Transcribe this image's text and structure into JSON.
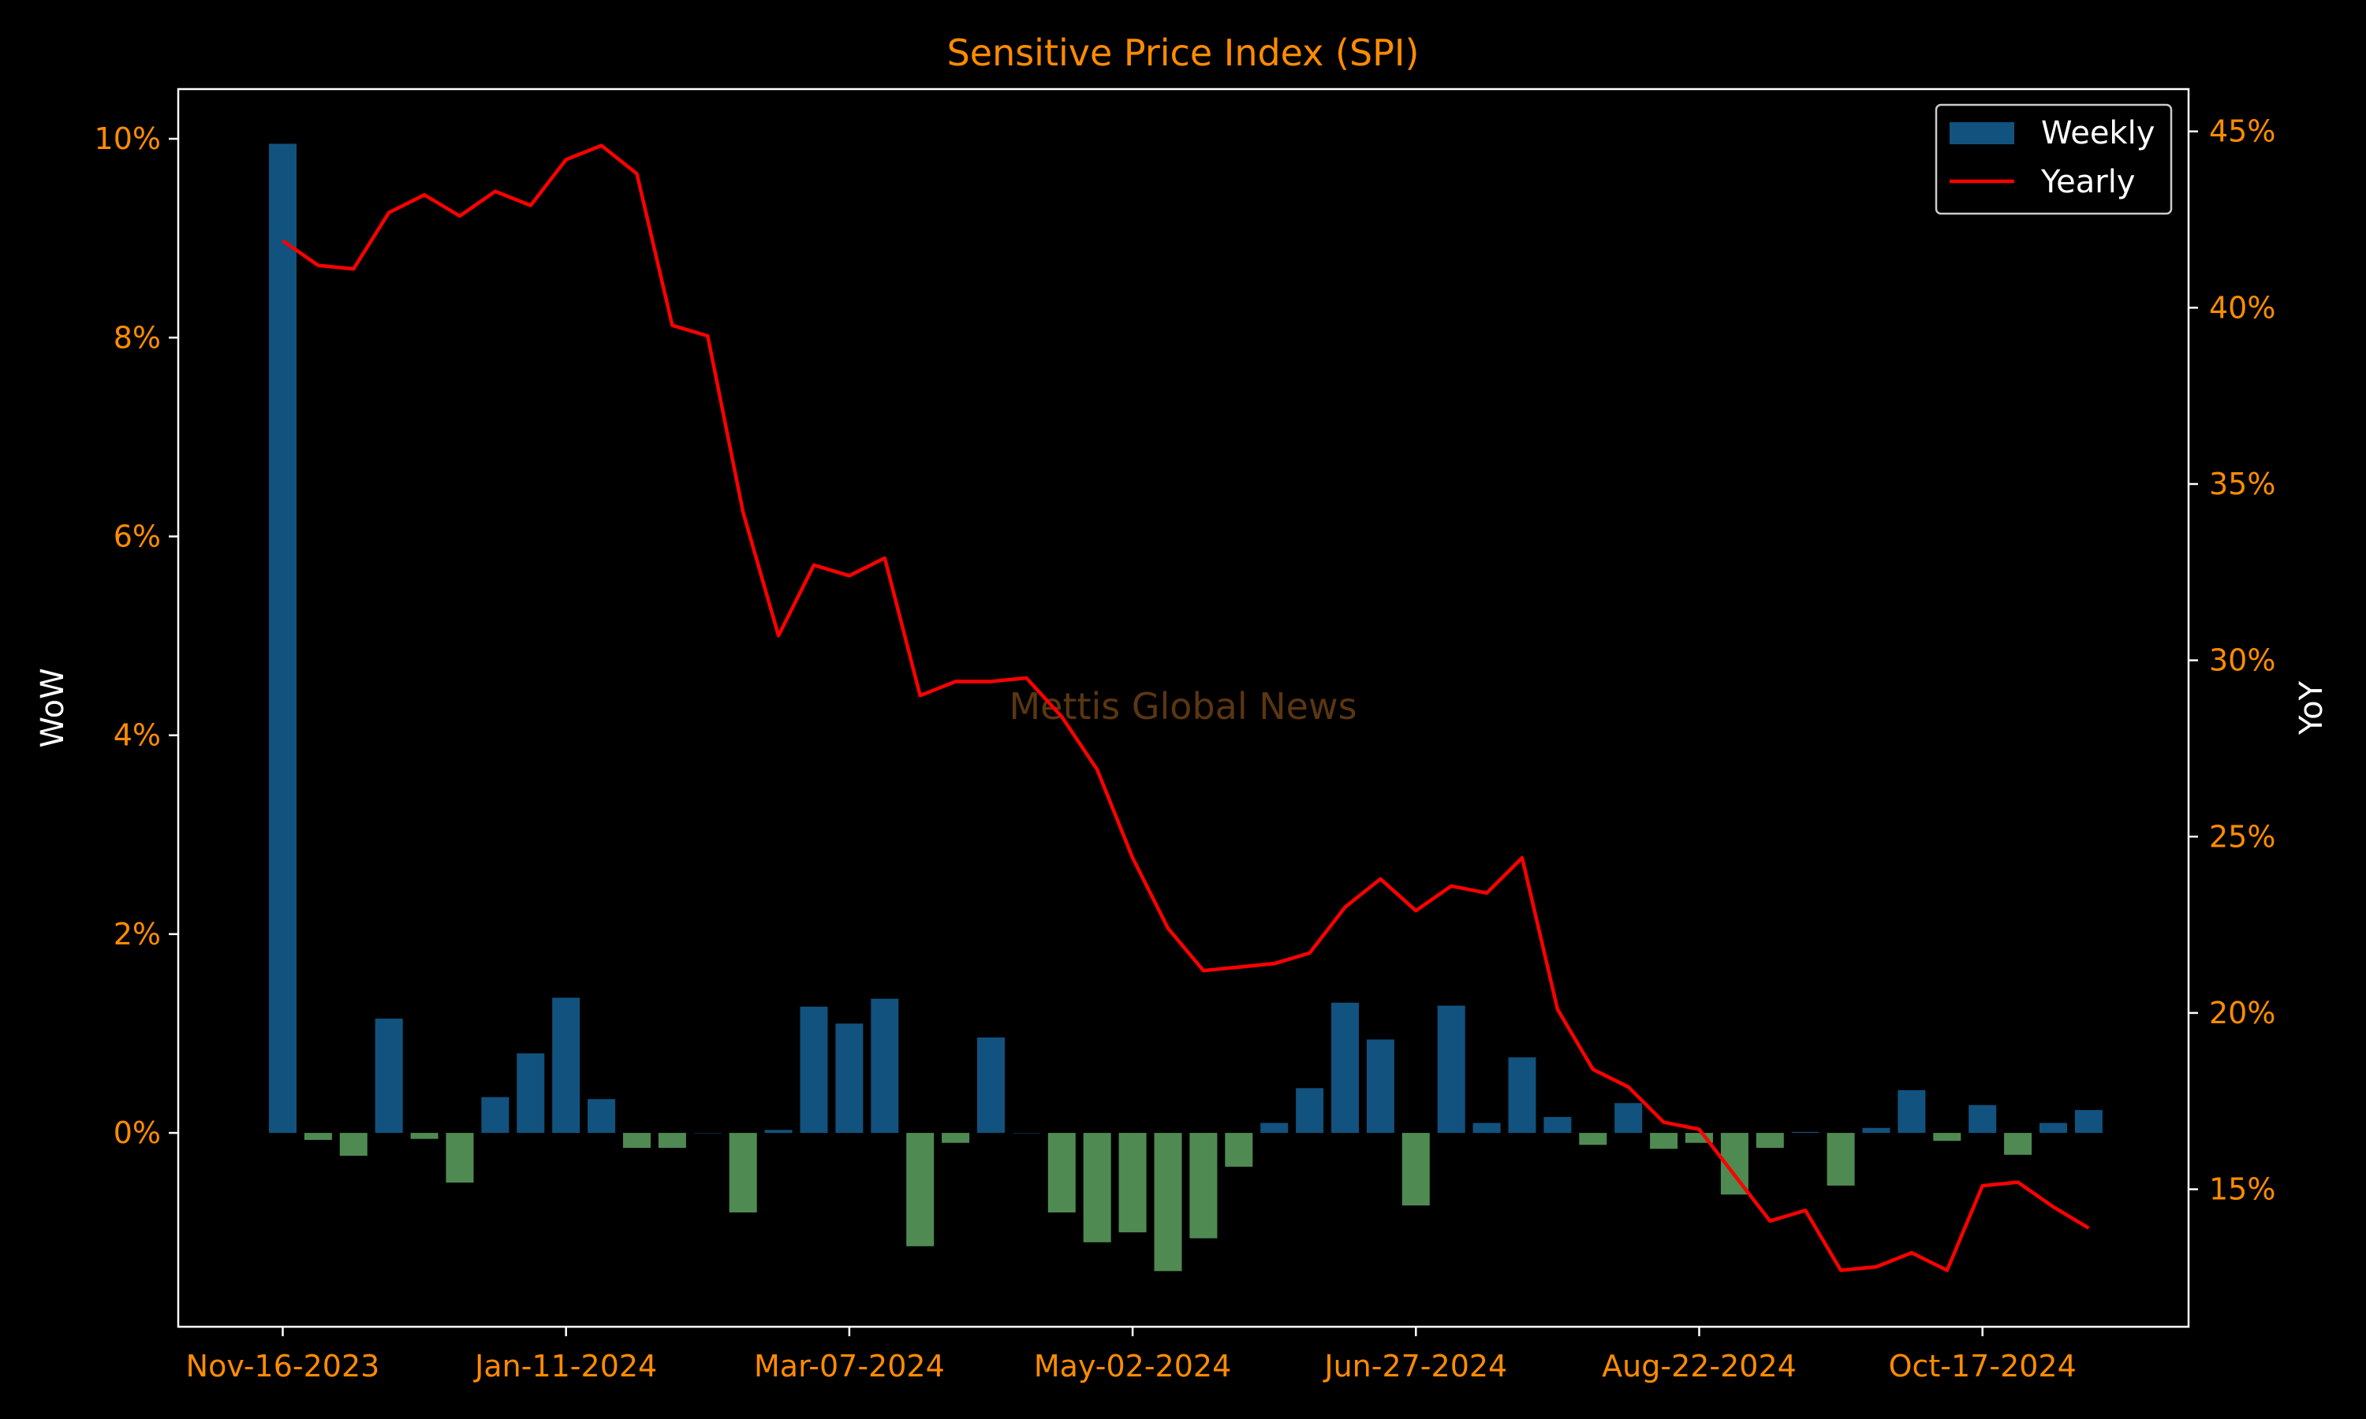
{
  "chart_data": {
    "type": "bar+line",
    "title": "Sensitive Price Index (SPI)",
    "watermark": "Mettis Global News",
    "left_axis": {
      "label": "WoW",
      "ylim": [
        -1.95,
        10.5
      ],
      "ticks": [
        "0%",
        "2%",
        "4%",
        "6%",
        "8%",
        "10%"
      ],
      "tick_values": [
        0,
        2,
        4,
        6,
        8,
        10
      ]
    },
    "right_axis": {
      "label": "YoY",
      "ylim": [
        11.1,
        46.2
      ],
      "ticks": [
        "15%",
        "20%",
        "25%",
        "30%",
        "35%",
        "40%",
        "45%"
      ],
      "tick_values": [
        15,
        20,
        25,
        30,
        35,
        40,
        45
      ]
    },
    "x_tick_labels": [
      "Nov-16-2023",
      "Jan-11-2024",
      "Mar-07-2024",
      "May-02-2024",
      "Jun-27-2024",
      "Aug-22-2024",
      "Oct-17-2024"
    ],
    "x_tick_indices": [
      0,
      8,
      16,
      24,
      32,
      40,
      48
    ],
    "legend": {
      "placement": "top-right",
      "items": [
        "Weekly",
        "Yearly"
      ]
    },
    "colors": {
      "positive_bar": "#12527e",
      "negative_bar": "#4f8a52",
      "line": "#ff0000",
      "tick_text": "#ff8c00",
      "title_text": "#ff8c00",
      "label_text": "#ffffff",
      "frame": "#ffffff",
      "watermark": "#5a3612"
    },
    "weeks": 52,
    "series": [
      {
        "name": "Weekly",
        "axis": "left",
        "kind": "bar",
        "values": [
          9.95,
          -0.07,
          -0.23,
          1.15,
          -0.06,
          -0.5,
          0.36,
          0.8,
          1.36,
          0.34,
          -0.15,
          -0.15,
          0.0,
          -0.8,
          0.03,
          1.27,
          1.1,
          1.35,
          -1.14,
          -0.1,
          0.96,
          0.0,
          -0.8,
          -1.1,
          -1.0,
          -1.39,
          -1.06,
          -0.34,
          0.1,
          0.45,
          1.31,
          0.94,
          -0.73,
          1.28,
          0.1,
          0.76,
          0.16,
          -0.12,
          0.3,
          -0.16,
          -0.1,
          -0.62,
          -0.15,
          0.01,
          -0.53,
          0.05,
          0.43,
          -0.08,
          0.28,
          -0.22,
          0.1,
          0.23
        ]
      },
      {
        "name": "Yearly",
        "axis": "right",
        "kind": "line",
        "values": [
          41.9,
          41.2,
          41.1,
          42.7,
          43.2,
          42.6,
          43.3,
          42.9,
          44.2,
          44.6,
          43.8,
          39.5,
          39.2,
          34.2,
          30.7,
          32.7,
          32.4,
          32.9,
          29.0,
          29.4,
          29.4,
          29.5,
          28.4,
          26.9,
          24.4,
          22.4,
          21.2,
          21.3,
          21.4,
          21.7,
          23.0,
          23.8,
          22.9,
          23.6,
          23.4,
          24.4,
          20.1,
          18.4,
          17.9,
          16.9,
          16.7,
          15.4,
          14.1,
          14.4,
          12.7,
          12.8,
          13.2,
          12.7,
          15.1,
          15.2,
          14.5,
          13.9
        ]
      }
    ]
  }
}
